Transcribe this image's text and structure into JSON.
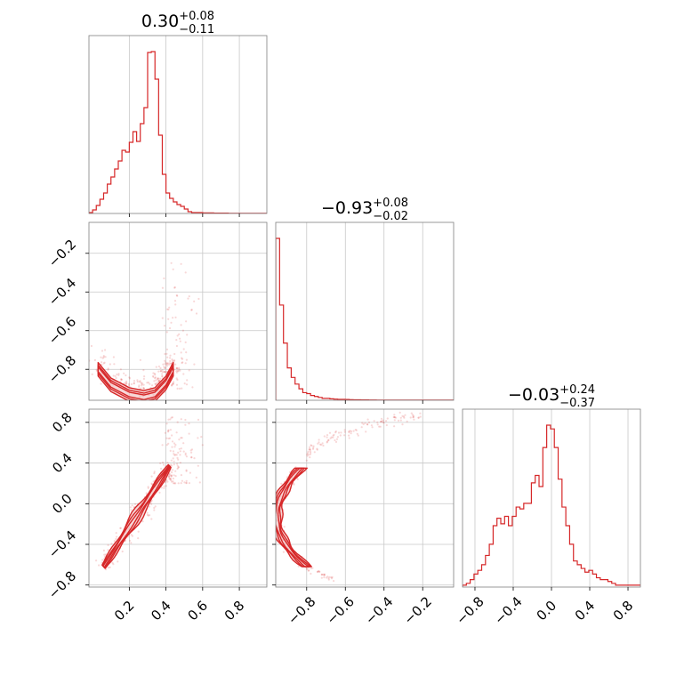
{
  "colors": {
    "line": "#d62728",
    "fill": "#f4c6c6",
    "grid": "#c8c8c8",
    "frame": "#7f7f7f"
  },
  "chart_data": [
    {
      "type": "histogram",
      "panel": "param-1-marginal",
      "title": {
        "value": "0.30",
        "upper": "+0.08",
        "lower": "−0.11"
      },
      "xlim": [
        -0.02,
        0.95
      ],
      "x_ticks": [
        "0.2",
        "0.4",
        "0.6",
        "0.8"
      ],
      "bin_edges_start": -0.02,
      "bin_width": 0.02,
      "counts": [
        0.5,
        2.0,
        4.5,
        8.0,
        11.5,
        16.5,
        20.5,
        25.0,
        29.5,
        35.5,
        34.5,
        40.0,
        46.0,
        40.5,
        50.5,
        59.5,
        90.5,
        91.0,
        75.5,
        44.0,
        22.0,
        11.5,
        8.5,
        6.5,
        5.0,
        4.0,
        2.5,
        1.0,
        0.5,
        0.5,
        0.5,
        0.3,
        0.3,
        0.3,
        0.2,
        0.2,
        0.2,
        0.2,
        0.1,
        0.1,
        0.1,
        0.1,
        0.1,
        0.1,
        0.1,
        0.1,
        0.1,
        0.1,
        0.1
      ]
    },
    {
      "type": "histogram",
      "panel": "param-2-marginal",
      "title": {
        "value": "−0.93",
        "upper": "+0.08",
        "lower": "−0.02"
      },
      "xlim": [
        -0.96,
        -0.04
      ],
      "x_ticks": [
        "−0.8",
        "−0.6",
        "−0.4",
        "−0.2"
      ],
      "bin_edges_start": -0.96,
      "bin_width": 0.02,
      "counts": [
        170,
        100,
        60,
        34,
        24,
        17,
        12,
        8,
        7,
        5,
        4,
        3,
        2,
        2,
        1.5,
        1.2,
        1,
        1,
        0.8,
        0.6,
        0.5,
        0.5,
        0.4,
        0.4,
        0.3,
        0.3,
        0.2,
        0.2,
        0.2,
        0.2,
        0.15,
        0.15,
        0.1,
        0.1,
        0.1,
        0.1,
        0.1,
        0.1,
        0.1,
        0.1,
        0.1,
        0.1,
        0.1,
        0.1,
        0.1,
        0.1
      ]
    },
    {
      "type": "histogram",
      "panel": "param-3-marginal",
      "title": {
        "value": "−0.03",
        "upper": "+0.24",
        "lower": "−0.37"
      },
      "xlim": [
        -0.93,
        0.93
      ],
      "x_ticks": [
        "−0.8",
        "−0.4",
        "0.0",
        "0.4",
        "0.8"
      ],
      "bin_edges_start": -0.93,
      "bin_width": 0.04,
      "counts": [
        1,
        2,
        4,
        7,
        9,
        12,
        17,
        23,
        33,
        37,
        34,
        38,
        33,
        38,
        43,
        42,
        45,
        45,
        56,
        60,
        54,
        75,
        87,
        85,
        75,
        58,
        43,
        33,
        23,
        14,
        12,
        10,
        8,
        9,
        7,
        5,
        4,
        4,
        3,
        2,
        1,
        1,
        1,
        1,
        1,
        1,
        1
      ]
    },
    {
      "type": "scatter-contour",
      "panel": "param-1-vs-param-2",
      "xlim": [
        -0.02,
        0.95
      ],
      "ylim": [
        -0.96,
        -0.04
      ],
      "y_ticks": [
        "−0.2",
        "−0.4",
        "−0.6",
        "−0.8"
      ],
      "ridge": [
        [
          0.03,
          -0.8
        ],
        [
          0.1,
          -0.88
        ],
        [
          0.2,
          -0.93
        ],
        [
          0.28,
          -0.945
        ],
        [
          0.34,
          -0.93
        ],
        [
          0.4,
          -0.87
        ],
        [
          0.44,
          -0.8
        ]
      ],
      "contour_half_width": [
        0.07,
        0.045,
        0.025
      ],
      "contour_y_half_width": [
        0.035,
        0.022,
        0.012
      ],
      "scatter_cluster": {
        "x": [
          0.38,
          0.6
        ],
        "y": [
          -0.9,
          -0.25
        ]
      }
    },
    {
      "type": "scatter-contour",
      "panel": "param-1-vs-param-3",
      "xlim": [
        -0.02,
        0.95
      ],
      "ylim": [
        -0.82,
        0.93
      ],
      "x_ticks": [
        "0.2",
        "0.4",
        "0.6",
        "0.8"
      ],
      "y_ticks": [
        "0.8",
        "0.4",
        "0.0",
        "−0.4",
        "−0.8"
      ],
      "ridge_start": [
        0.06,
        -0.62
      ],
      "ridge_end": [
        0.42,
        0.37
      ],
      "contour_half_width": [
        0.035,
        0.022,
        0.011
      ],
      "scatter_cluster": {
        "x": [
          0.38,
          0.62
        ],
        "y": [
          0.2,
          0.85
        ]
      }
    },
    {
      "type": "scatter-contour",
      "panel": "param-2-vs-param-3",
      "xlim": [
        -0.96,
        -0.04
      ],
      "ylim": [
        -0.82,
        0.93
      ],
      "x_ticks": [
        "−0.8",
        "−0.6",
        "−0.4",
        "−0.2"
      ],
      "arc": {
        "x_vertex": -0.955,
        "x_right_top": -0.83,
        "x_right_bottom": -0.8,
        "y_top": 0.35,
        "y_bottom": -0.62
      },
      "contour_x_half_width": [
        0.025,
        0.016,
        0.008
      ],
      "scatter_tail": {
        "x": [
          -0.8,
          -0.2
        ],
        "y": [
          0.45,
          0.88
        ]
      }
    }
  ]
}
